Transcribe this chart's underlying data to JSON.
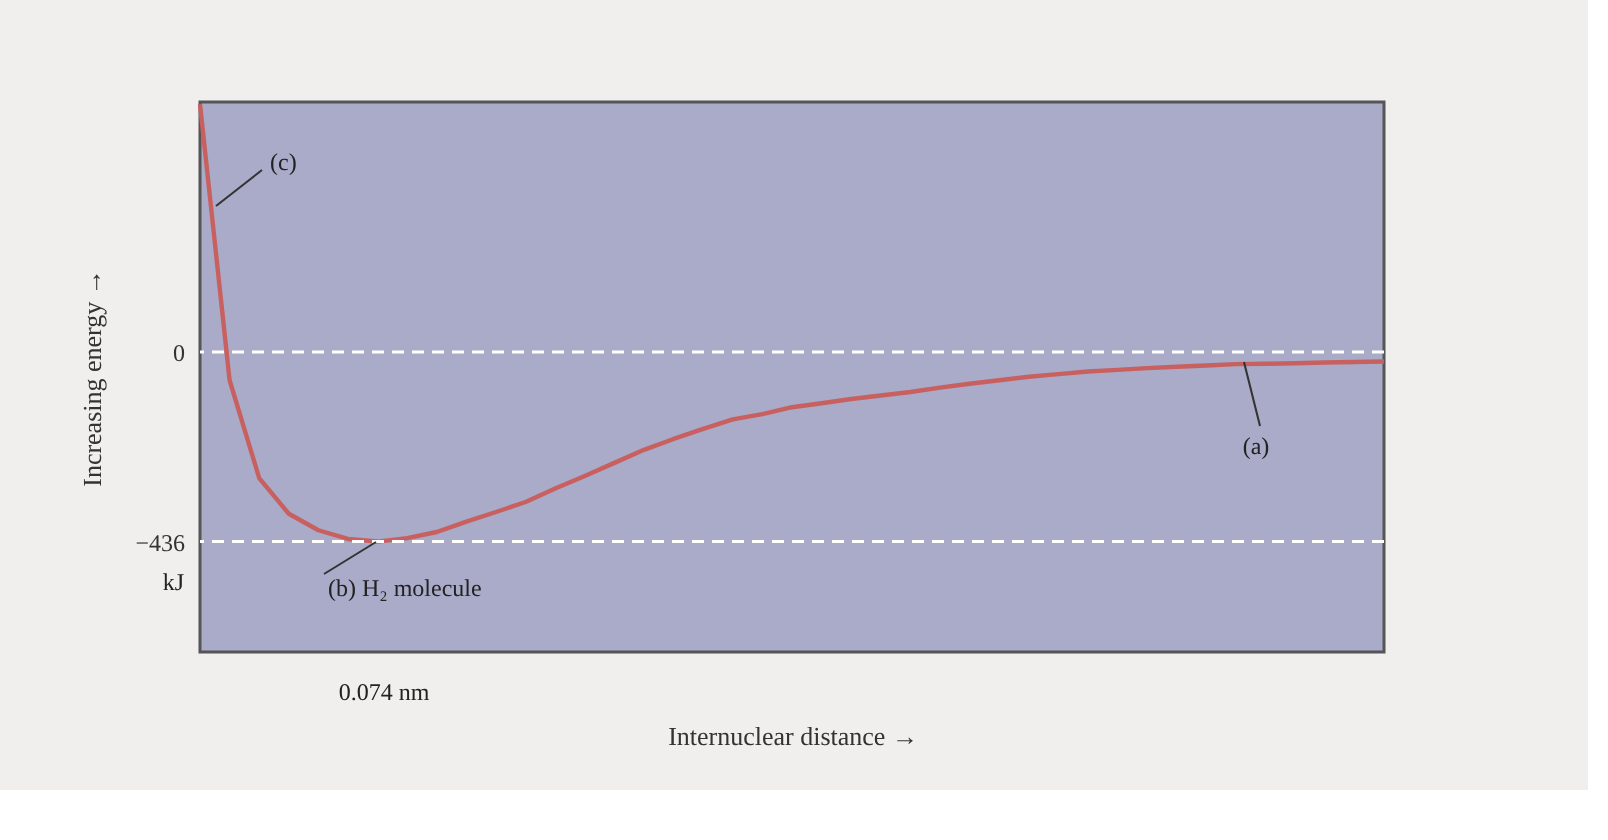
{
  "chart_data": {
    "type": "line",
    "xlabel": "Internuclear distance →",
    "ylabel": "Increasing energy →",
    "ylim": [
      -690,
      575
    ],
    "yticks": [
      {
        "value": 0,
        "label": "0"
      },
      {
        "value": -436,
        "label": "−436"
      }
    ],
    "tick_labels": "y",
    "grid": false,
    "legend": false,
    "marker": "none",
    "line_style": "solid",
    "categories": [
      null,
      null,
      null,
      null,
      null,
      null,
      null,
      null,
      null,
      null,
      null,
      null,
      null,
      null,
      null,
      null,
      null,
      null,
      null,
      null,
      null,
      null,
      null,
      null,
      null,
      null,
      null,
      null,
      null,
      null,
      null,
      null,
      null,
      null,
      null,
      null,
      null,
      null,
      null,
      null,
      null
    ],
    "series": [
      {
        "color": "#c8605f",
        "values": [
          570,
          -65,
          -290,
          -372,
          -410,
          -430,
          -436,
          -428,
          -414,
          -390,
          -368,
          -345,
          -314,
          -285,
          -255,
          -225,
          -200,
          -177,
          -155,
          -143,
          -127,
          -118,
          -108,
          -100,
          -92,
          -82,
          -73,
          -65,
          -57,
          -51,
          -45,
          -41,
          -37,
          -34,
          -31,
          -28,
          -27,
          -26,
          -24,
          -23,
          -22
        ]
      }
    ],
    "ref_lines": [
      {
        "axis": "y",
        "value": 0,
        "color": "#ffffff",
        "line_style": "dashed"
      },
      {
        "axis": "y",
        "value": -436,
        "color": "#ffffff",
        "line_style": "dashed"
      }
    ],
    "annotations": [
      "(c)",
      "(b)  H₂ molecule",
      "(a)",
      "0.074 nm",
      "kJ"
    ]
  }
}
